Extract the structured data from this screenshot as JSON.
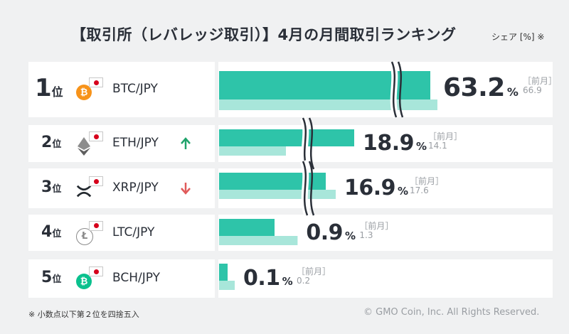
{
  "title": "【取引所（レバレッジ取引）】4月の月間取引ランキング",
  "unit_label": "シェア [%] ※",
  "prev_label": "［前月］",
  "pct_symbol": "%",
  "rank_suffix": "位",
  "rows": [
    {
      "rank": "1",
      "pair": "BTC/JPY",
      "coin_icon": "bitcoin-icon",
      "coin_color": "#f7931a",
      "change": "",
      "share": "63.2",
      "prev": "66.9"
    },
    {
      "rank": "2",
      "pair": "ETH/JPY",
      "coin_icon": "ethereum-icon",
      "coin_color": "#627eea",
      "change": "up",
      "share": "18.9",
      "prev": "14.1"
    },
    {
      "rank": "3",
      "pair": "XRP/JPY",
      "coin_icon": "xrp-icon",
      "coin_color": "#23292f",
      "change": "down",
      "share": "16.9",
      "prev": "17.6"
    },
    {
      "rank": "4",
      "pair": "LTC/JPY",
      "coin_icon": "litecoin-icon",
      "coin_color": "#8a8a8a",
      "change": "",
      "share": "0.9",
      "prev": "1.3"
    },
    {
      "rank": "5",
      "pair": "BCH/JPY",
      "coin_icon": "bitcoin-cash-icon",
      "coin_color": "#0ac18e",
      "change": "",
      "share": "0.1",
      "prev": "0.2"
    }
  ],
  "colors": {
    "current": "#2ec4a9",
    "previous": "#a8e6da",
    "up": "#1fa36b",
    "down": "#e05a5a"
  },
  "chart_data": {
    "type": "bar",
    "orientation": "horizontal",
    "broken_axis": true,
    "categories": [
      "BTC/JPY",
      "ETH/JPY",
      "XRP/JPY",
      "LTC/JPY",
      "BCH/JPY"
    ],
    "series": [
      {
        "name": "",
        "values": [
          63.2,
          18.9,
          16.9,
          0.9,
          0.1
        ]
      },
      {
        "name": "前月",
        "values": [
          66.9,
          14.1,
          17.6,
          1.3,
          0.2
        ]
      }
    ]
  },
  "footer_note": "※ 小数点以下第２位を四捨五入",
  "copyright": "© GMO Coin, Inc. All Rights Reserved."
}
